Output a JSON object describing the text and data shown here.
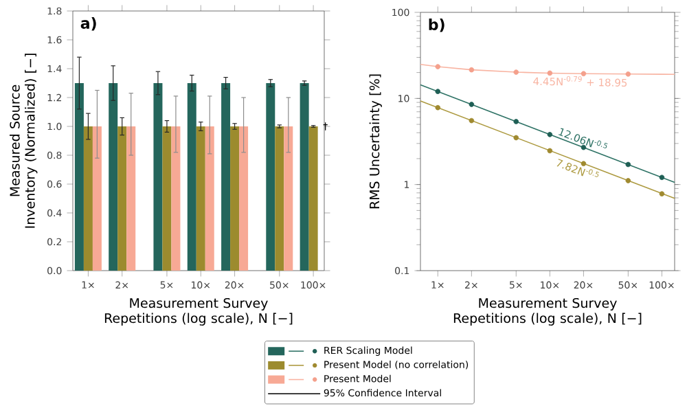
{
  "chart_data": [
    {
      "type": "bar",
      "title": "a)",
      "xlabel": "Measurement Survey Repetitions (log scale), N [−]",
      "ylabel": "Measured Source Inventory (Normalized) [−]",
      "x": [
        1,
        2,
        5,
        10,
        20,
        50,
        100
      ],
      "log": "x",
      "xlim": [
        0.73,
        125
      ],
      "xticks": [
        {
          "value": 1,
          "label": "1×"
        },
        {
          "value": 2,
          "label": "2×"
        },
        {
          "value": 5,
          "label": "5×"
        },
        {
          "value": 10,
          "label": "10×"
        },
        {
          "value": 20,
          "label": "20×"
        },
        {
          "value": 50,
          "label": "50×"
        },
        {
          "value": 100,
          "label": "100×"
        }
      ],
      "ylim": [
        0,
        1.8
      ],
      "yticks": [
        {
          "value": 0,
          "label": "0.0"
        },
        {
          "value": 0.2,
          "label": "0.2"
        },
        {
          "value": 0.4,
          "label": "0.4"
        },
        {
          "value": 0.6,
          "label": "0.6"
        },
        {
          "value": 0.8,
          "label": "0.8"
        },
        {
          "value": 1.0,
          "label": "1.0"
        },
        {
          "value": 1.2,
          "label": "1.2"
        },
        {
          "value": 1.4,
          "label": "1.4"
        },
        {
          "value": 1.6,
          "label": "1.6"
        },
        {
          "value": 1.8,
          "label": "1.8"
        }
      ],
      "legend": "bottom",
      "series": [
        {
          "name": "RER Scaling Model",
          "color": "#24665c",
          "values": [
            1.3,
            1.3,
            1.3,
            1.3,
            1.3,
            1.3,
            1.3
          ],
          "errors": [
            0.18,
            0.12,
            0.08,
            0.055,
            0.04,
            0.025,
            0.015
          ]
        },
        {
          "name": "Present Model (no correlation)",
          "color": "#9c8b2e",
          "values": [
            1.0,
            1.0,
            1.0,
            1.0,
            1.0,
            1.0,
            1.0
          ],
          "errors": [
            0.09,
            0.06,
            0.04,
            0.03,
            0.02,
            0.01,
            0.006
          ]
        },
        {
          "name": "Present Model",
          "color": "#f7a995",
          "values": [
            1.0,
            1.0,
            1.0,
            1.0,
            1.0,
            1.0,
            null
          ],
          "errors": [
            [
              0.78,
              1.25
            ],
            [
              0.8,
              1.23
            ],
            [
              0.82,
              1.21
            ],
            [
              0.81,
              1.21
            ],
            [
              0.82,
              1.2
            ],
            [
              0.82,
              1.2
            ],
            null
          ]
        }
      ],
      "annotations": [
        "95% Confidence Interval",
        {
          "text": "†",
          "x": 100,
          "y": 1.0
        }
      ]
    },
    {
      "type": "line",
      "title": "b)",
      "xlabel": "Measurement Survey Repetitions (log scale), N [−]",
      "ylabel": "RMS Uncertainty [%]",
      "log": "xy",
      "xlim": [
        0.7,
        130
      ],
      "ylim": [
        0.1,
        100
      ],
      "xticks": [
        {
          "value": 1,
          "label": "1×"
        },
        {
          "value": 2,
          "label": "2×"
        },
        {
          "value": 5,
          "label": "5×"
        },
        {
          "value": 10,
          "label": "10×"
        },
        {
          "value": 20,
          "label": "20×"
        },
        {
          "value": 50,
          "label": "50×"
        },
        {
          "value": 100,
          "label": "100×"
        }
      ],
      "yticks": [
        0.1,
        1,
        10,
        100
      ],
      "series": [
        {
          "type": "scatter",
          "marker": "circle",
          "color": "#1f5f55",
          "x": [
            1,
            2,
            5,
            10,
            20,
            50,
            100
          ],
          "values": [
            12.06,
            8.53,
            5.39,
            3.81,
            2.7,
            1.71,
            1.21
          ]
        },
        {
          "type": "scatter",
          "marker": "circle",
          "color": "#a08a30",
          "x": [
            1,
            2,
            5,
            10,
            20,
            50,
            100
          ],
          "values": [
            7.82,
            5.53,
            3.5,
            2.47,
            1.75,
            1.11,
            0.78
          ]
        },
        {
          "type": "scatter",
          "marker": "circle",
          "color": "#f4a08c",
          "x": [
            1,
            2,
            5,
            10,
            20,
            50
          ],
          "values": [
            23.4,
            21.5,
            20.2,
            19.7,
            19.4,
            19.2
          ]
        },
        {
          "type": "line",
          "name": "12.06N$^{-0.5}$",
          "color": "#2f7366",
          "x": [
            0.7,
            130
          ],
          "values": [
            14.4,
            1.06
          ]
        },
        {
          "type": "line",
          "name": "7.82N$^{-0.5}$",
          "color": "#ad9a40",
          "x": [
            0.7,
            130
          ],
          "values": [
            9.35,
            0.69
          ]
        },
        {
          "type": "line",
          "name": "4.45N$^{-0.79}$ + 18.95",
          "color": "#f8b4a2",
          "x": [
            0.7,
            1,
            2,
            5,
            10,
            20,
            50,
            100,
            130
          ],
          "values": [
            24.9,
            23.4,
            21.5,
            20.2,
            19.7,
            19.4,
            19.2,
            19.1,
            19.05
          ]
        }
      ]
    }
  ]
}
